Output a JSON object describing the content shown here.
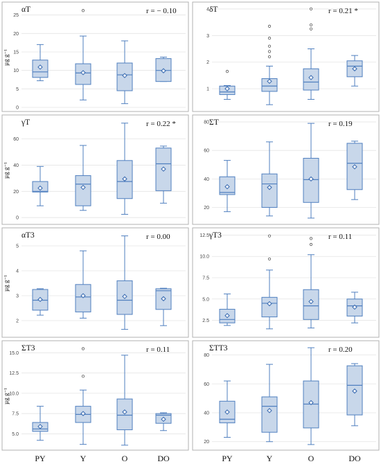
{
  "ylabel": "µg g⁻¹",
  "categories": [
    "PY",
    "Y",
    "O",
    "DO"
  ],
  "chart_data": [
    {
      "type": "box",
      "title": "αT",
      "r_label": "r = − 0.10",
      "ylabel": "µg g⁻¹",
      "ylim": [
        0,
        27
      ],
      "yticks": [
        0,
        5,
        10,
        15,
        20,
        25
      ],
      "categories": [
        "PY",
        "Y",
        "O",
        "DO"
      ],
      "boxes": [
        {
          "min": 7.2,
          "q1": 8.1,
          "median": 9.6,
          "q3": 12.8,
          "max": 17,
          "mean": 10.9,
          "outliers": []
        },
        {
          "min": 2,
          "q1": 6.2,
          "median": 9.3,
          "q3": 11.8,
          "max": 19.3,
          "mean": 9.4,
          "outliers": [
            26.2
          ]
        },
        {
          "min": 1,
          "q1": 4.5,
          "median": 8.8,
          "q3": 12,
          "max": 18,
          "mean": 8.6,
          "outliers": []
        },
        {
          "min": 7,
          "q1": 7,
          "median": 10,
          "q3": 13.2,
          "max": 13.6,
          "mean": 9.9,
          "outliers": []
        }
      ]
    },
    {
      "type": "box",
      "title": "δT",
      "r_label": "r = 0.21 *",
      "ylabel": "",
      "ylim": [
        0.3,
        4.05
      ],
      "yticks": [
        1,
        2,
        3,
        4
      ],
      "categories": [
        "PY",
        "Y",
        "O",
        "DO"
      ],
      "boxes": [
        {
          "min": 0.6,
          "q1": 0.78,
          "median": 0.88,
          "q3": 1.1,
          "max": 1.12,
          "mean": 1.0,
          "outliers": [
            1.65
          ]
        },
        {
          "min": 0.4,
          "q1": 0.9,
          "median": 1.1,
          "q3": 1.38,
          "max": 1.85,
          "mean": 1.28,
          "outliers": [
            2.2,
            2.4,
            2.6,
            2.9,
            3.35
          ]
        },
        {
          "min": 0.6,
          "q1": 0.95,
          "median": 1.25,
          "q3": 1.75,
          "max": 2.5,
          "mean": 1.42,
          "outliers": [
            3.25,
            3.4,
            4.0
          ]
        },
        {
          "min": 1.1,
          "q1": 1.45,
          "median": 1.85,
          "q3": 2.05,
          "max": 2.25,
          "mean": 1.75,
          "outliers": []
        }
      ]
    },
    {
      "type": "box",
      "title": "γT",
      "r_label": "r = 0.22 *",
      "ylabel": "µg g⁻¹",
      "ylim": [
        -2,
        74
      ],
      "yticks": [
        0,
        20,
        40,
        60
      ],
      "categories": [
        "PY",
        "Y",
        "O",
        "DO"
      ],
      "boxes": [
        {
          "min": 9,
          "q1": 19.5,
          "median": 20,
          "q3": 27.5,
          "max": 39,
          "mean": 22.5,
          "outliers": []
        },
        {
          "min": 5.5,
          "q1": 9,
          "median": 25.5,
          "q3": 32,
          "max": 55,
          "mean": 23,
          "outliers": []
        },
        {
          "min": 2.5,
          "q1": 14.5,
          "median": 27.5,
          "q3": 43.5,
          "max": 72,
          "mean": 29.5,
          "outliers": []
        },
        {
          "min": 11,
          "q1": 20.5,
          "median": 41,
          "q3": 53,
          "max": 54.5,
          "mean": 37,
          "outliers": []
        }
      ]
    },
    {
      "type": "box",
      "title": "ΣT",
      "r_label": "r = 0.19",
      "ylabel": "",
      "ylim": [
        11,
        81
      ],
      "yticks": [
        20,
        40,
        60,
        80
      ],
      "categories": [
        "PY",
        "Y",
        "O",
        "DO"
      ],
      "boxes": [
        {
          "min": 17,
          "q1": 29,
          "median": 30.5,
          "q3": 41.5,
          "max": 53,
          "mean": 34.5,
          "outliers": []
        },
        {
          "min": 14,
          "q1": 20,
          "median": 36.5,
          "q3": 43.5,
          "max": 66,
          "mean": 34,
          "outliers": []
        },
        {
          "min": 12.5,
          "q1": 23.5,
          "median": 39.5,
          "q3": 54.5,
          "max": 79,
          "mean": 40,
          "outliers": []
        },
        {
          "min": 25.5,
          "q1": 32.5,
          "median": 51,
          "q3": 65,
          "max": 66.5,
          "mean": 48.5,
          "outliers": []
        }
      ]
    },
    {
      "type": "box",
      "title": "αT3",
      "r_label": "r = 0.00",
      "ylabel": "µg g⁻¹",
      "ylim": [
        1.5,
        5.5
      ],
      "yticks": [
        2,
        3,
        4,
        5
      ],
      "categories": [
        "PY",
        "Y",
        "O",
        "DO"
      ],
      "boxes": [
        {
          "min": 2.22,
          "q1": 2.42,
          "median": 2.82,
          "q3": 3.25,
          "max": 3.28,
          "mean": 2.85,
          "outliers": []
        },
        {
          "min": 2.1,
          "q1": 2.35,
          "median": 2.95,
          "q3": 3.45,
          "max": 4.8,
          "mean": 3.0,
          "outliers": []
        },
        {
          "min": 1.65,
          "q1": 2.25,
          "median": 2.82,
          "q3": 3.6,
          "max": 5.4,
          "mean": 2.97,
          "outliers": []
        },
        {
          "min": 1.8,
          "q1": 2.45,
          "median": 3.2,
          "q3": 3.28,
          "max": 3.3,
          "mean": 2.88,
          "outliers": []
        }
      ]
    },
    {
      "type": "box",
      "title": "γT3",
      "r_label": "r = 0.11",
      "ylabel": "",
      "ylim": [
        1,
        12.7
      ],
      "yticks": [
        2.5,
        5.0,
        7.5,
        10.0,
        12.5
      ],
      "categories": [
        "PY",
        "Y",
        "O",
        "DO"
      ],
      "boxes": [
        {
          "min": 1.9,
          "q1": 2.2,
          "median": 2.6,
          "q3": 3.8,
          "max": 5.6,
          "mean": 3.05,
          "outliers": []
        },
        {
          "min": 1.5,
          "q1": 2.9,
          "median": 4.5,
          "q3": 5.2,
          "max": 8.4,
          "mean": 4.45,
          "outliers": [
            9.7,
            12.4
          ]
        },
        {
          "min": 1.6,
          "q1": 2.6,
          "median": 4.2,
          "q3": 6.1,
          "max": 10.2,
          "mean": 4.7,
          "outliers": [
            11.4,
            12.1
          ]
        },
        {
          "min": 2.2,
          "q1": 3.0,
          "median": 4.2,
          "q3": 5.0,
          "max": 5.8,
          "mean": 4.05,
          "outliers": []
        }
      ]
    },
    {
      "type": "box",
      "title": "ΣT3",
      "r_label": "r = 0.11",
      "ylabel": "µg g⁻¹",
      "ylim": [
        3.5,
        15.8
      ],
      "yticks": [
        5.0,
        7.5,
        10.0,
        12.5,
        15.0
      ],
      "categories": [
        "PY",
        "Y",
        "O",
        "DO"
      ],
      "boxes": [
        {
          "min": 4.2,
          "q1": 5.3,
          "median": 5.6,
          "q3": 6.4,
          "max": 8.4,
          "mean": 5.9,
          "outliers": []
        },
        {
          "min": 3.7,
          "q1": 6.4,
          "median": 7.4,
          "q3": 8.4,
          "max": 10.4,
          "mean": 7.5,
          "outliers": [
            12.1,
            15.5
          ]
        },
        {
          "min": 3.6,
          "q1": 5.5,
          "median": 7.3,
          "q3": 9.3,
          "max": 14.7,
          "mean": 7.7,
          "outliers": []
        },
        {
          "min": 5.4,
          "q1": 6.3,
          "median": 7.3,
          "q3": 7.5,
          "max": 7.6,
          "mean": 6.8,
          "outliers": []
        }
      ]
    },
    {
      "type": "box",
      "title": "ΣTT3",
      "r_label": "r = 0.20",
      "ylabel": "",
      "ylim": [
        17,
        86
      ],
      "yticks": [
        20,
        40,
        60,
        80
      ],
      "categories": [
        "PY",
        "Y",
        "O",
        "DO"
      ],
      "boxes": [
        {
          "min": 23,
          "q1": 33,
          "median": 35.5,
          "q3": 48,
          "max": 62,
          "mean": 40.5,
          "outliers": []
        },
        {
          "min": 20,
          "q1": 26.5,
          "median": 44.5,
          "q3": 51,
          "max": 73.5,
          "mean": 41.5,
          "outliers": []
        },
        {
          "min": 18,
          "q1": 29.5,
          "median": 46,
          "q3": 62,
          "max": 85,
          "mean": 47,
          "outliers": []
        },
        {
          "min": 31,
          "q1": 38.5,
          "median": 59,
          "q3": 72.5,
          "max": 74,
          "mean": 55,
          "outliers": []
        }
      ]
    }
  ]
}
